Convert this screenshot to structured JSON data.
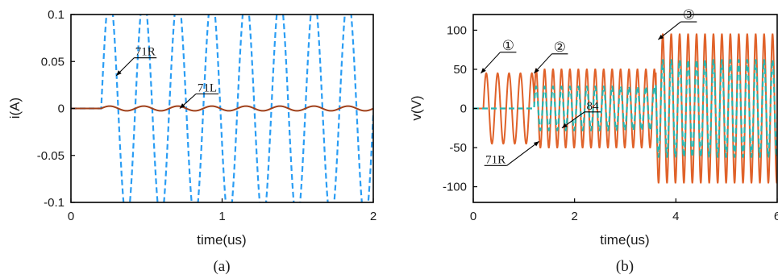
{
  "chart_data": [
    {
      "type": "line",
      "title": "",
      "caption": "(a)",
      "xlabel": "time(us)",
      "ylabel": "i(A)",
      "xlim": [
        0,
        2
      ],
      "ylim": [
        -0.1,
        0.1
      ],
      "x_ticks": [
        "0",
        "1",
        "2"
      ],
      "y_ticks": [
        "0.1",
        "0.05",
        "0",
        "-0.05",
        "-0.1"
      ],
      "grid": false,
      "series": [
        {
          "name": "71R",
          "color": "#2a9df4",
          "dash": true,
          "onset_us": 0.2,
          "frequency_mhz": 4.44,
          "amplitude_a": 0.12
        },
        {
          "name": "71L",
          "color": "#a0401a",
          "dash": false,
          "onset_us": 0.2,
          "frequency_mhz": 4.44,
          "amplitude_a": 0.0025
        }
      ],
      "annotations": [
        {
          "text": "71R",
          "points_to": [
            0.3,
            0.035
          ]
        },
        {
          "text": "71L",
          "points_to": [
            0.72,
            0.0
          ]
        }
      ]
    },
    {
      "type": "line",
      "title": "",
      "caption": "(b)",
      "xlabel": "time(us)",
      "ylabel": "v(V)",
      "xlim": [
        0,
        6
      ],
      "ylim": [
        -120,
        120
      ],
      "x_ticks": [
        "0",
        "2",
        "4",
        "6"
      ],
      "y_ticks": [
        "100",
        "50",
        "0",
        "-50",
        "-100"
      ],
      "grid": false,
      "series": [
        {
          "name": "71R",
          "color": "#e0622a",
          "dash": false,
          "segments": [
            {
              "start_us": 0.2,
              "end_us": 1.2,
              "frequency_mhz": 4.44,
              "amplitude_v": 45
            },
            {
              "start_us": 1.2,
              "end_us": 3.6,
              "frequency_mhz": 6.0,
              "amplitude_v": 50
            },
            {
              "start_us": 3.6,
              "end_us": 6.0,
              "frequency_mhz": 6.0,
              "amplitude_v": 95
            }
          ]
        },
        {
          "name": "84",
          "color": "#28b5b0",
          "dash": true,
          "segments": [
            {
              "start_us": 1.2,
              "end_us": 3.6,
              "frequency_mhz": 6.0,
              "amplitude_v": 28
            },
            {
              "start_us": 3.6,
              "end_us": 6.0,
              "frequency_mhz": 6.0,
              "amplitude_v": 62
            }
          ]
        }
      ],
      "annotations": [
        {
          "text": "①",
          "points_to": [
            0.15,
            45
          ]
        },
        {
          "text": "②",
          "points_to": [
            1.2,
            45
          ]
        },
        {
          "text": "③",
          "points_to": [
            3.65,
            88
          ]
        },
        {
          "text": "84",
          "points_to": [
            1.75,
            -25
          ]
        },
        {
          "text": "71R",
          "points_to": [
            1.3,
            -42
          ]
        }
      ]
    }
  ]
}
